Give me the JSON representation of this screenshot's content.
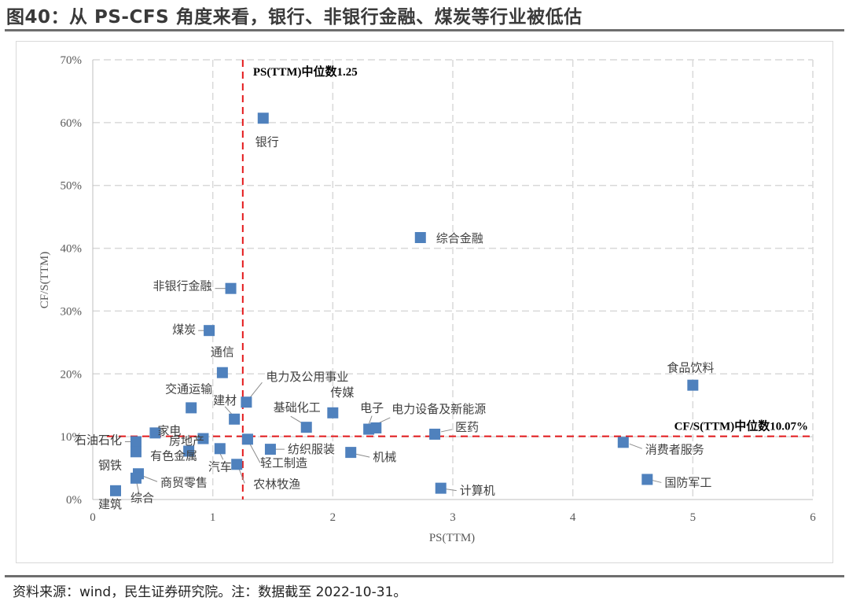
{
  "page": {
    "title": "图40：从 PS-CFS 角度来看，银行、非银行金融、煤炭等行业被低估",
    "source": "资料来源：wind，民生证券研究院。注：数据截至 2022-10-31。"
  },
  "colors": {
    "marker": "#4f81bd",
    "reference_line": "#e41a1c",
    "grid": "#d9d9d9",
    "axis": "#bfbfbf"
  },
  "chart_data": {
    "type": "scatter",
    "xlabel": "PS(TTM)",
    "ylabel": "CF/S(TTM)",
    "xlim": [
      0,
      6
    ],
    "ylim": [
      0,
      0.7
    ],
    "x_ticks": [
      0,
      1,
      2,
      3,
      4,
      5,
      6
    ],
    "x_tick_labels": [
      "0",
      "1",
      "2",
      "3",
      "4",
      "5",
      "6"
    ],
    "y_ticks": [
      0,
      0.1,
      0.2,
      0.3,
      0.4,
      0.5,
      0.6,
      0.7
    ],
    "y_tick_labels": [
      "0%",
      "10%",
      "20%",
      "30%",
      "40%",
      "50%",
      "60%",
      "70%"
    ],
    "grid": true,
    "reference_lines": [
      {
        "axis": "x",
        "value": 1.25,
        "label": "PS(TTM)中位数1.25"
      },
      {
        "axis": "y",
        "value": 0.1007,
        "label": "CF/S(TTM)中位数10.07%"
      }
    ],
    "points": [
      {
        "name": "银行",
        "x": 1.42,
        "y": 0.607
      },
      {
        "name": "综合金融",
        "x": 2.73,
        "y": 0.417
      },
      {
        "name": "非银行金融",
        "x": 1.15,
        "y": 0.336
      },
      {
        "name": "煤炭",
        "x": 0.97,
        "y": 0.269
      },
      {
        "name": "通信",
        "x": 1.08,
        "y": 0.202
      },
      {
        "name": "食品饮料",
        "x": 5.0,
        "y": 0.182
      },
      {
        "name": "电力及公用事业",
        "x": 1.28,
        "y": 0.155
      },
      {
        "name": "交通运输",
        "x": 0.82,
        "y": 0.146
      },
      {
        "name": "传媒",
        "x": 2.0,
        "y": 0.138
      },
      {
        "name": "建材",
        "x": 1.18,
        "y": 0.128
      },
      {
        "name": "基础化工",
        "x": 1.78,
        "y": 0.115
      },
      {
        "name": "电子",
        "x": 2.3,
        "y": 0.112
      },
      {
        "name": "电力设备及新能源",
        "x": 2.36,
        "y": 0.114
      },
      {
        "name": "医药",
        "x": 2.85,
        "y": 0.104
      },
      {
        "name": "家电",
        "x": 0.52,
        "y": 0.106
      },
      {
        "name": "房地产",
        "x": 0.92,
        "y": 0.097
      },
      {
        "name": "石油石化",
        "x": 0.36,
        "y": 0.092
      },
      {
        "name": "有色金属",
        "x": 0.8,
        "y": 0.077
      },
      {
        "name": "钢铁",
        "x": 0.36,
        "y": 0.076
      },
      {
        "name": "纺织服装",
        "x": 1.48,
        "y": 0.08
      },
      {
        "name": "机械",
        "x": 2.15,
        "y": 0.075
      },
      {
        "name": "汽车",
        "x": 1.06,
        "y": 0.081
      },
      {
        "name": "轻工制造",
        "x": 1.29,
        "y": 0.096
      },
      {
        "name": "消费者服务",
        "x": 4.42,
        "y": 0.091
      },
      {
        "name": "农林牧渔",
        "x": 1.2,
        "y": 0.056
      },
      {
        "name": "商贸零售",
        "x": 0.38,
        "y": 0.041
      },
      {
        "name": "综合",
        "x": 0.36,
        "y": 0.034
      },
      {
        "name": "国防军工",
        "x": 4.62,
        "y": 0.032
      },
      {
        "name": "计算机",
        "x": 2.9,
        "y": 0.018
      },
      {
        "name": "建筑",
        "x": 0.19,
        "y": 0.014
      }
    ]
  }
}
